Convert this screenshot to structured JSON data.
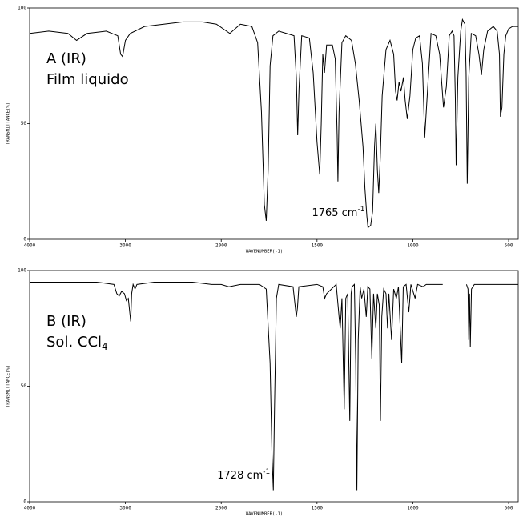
{
  "chart_data": [
    {
      "type": "line",
      "labels": [
        {
          "text": "A (IR)"
        },
        {
          "text": "Film liquido"
        }
      ],
      "annotation": {
        "text": "1765 cm",
        "sup": "-1"
      },
      "x_label": "WAVENUMBER(-1)",
      "y_label": "TRANSMITTANCE(%)",
      "xlim": [
        4000,
        450
      ],
      "ylim": [
        0,
        100
      ],
      "xscale": {
        "break": 2000,
        "expansion": 2
      },
      "xticks": [
        4000,
        3000,
        2000,
        1500,
        1000,
        500
      ],
      "yticks": [
        0,
        50,
        100
      ],
      "color": "#000000",
      "x": [
        4000,
        3800,
        3600,
        3510,
        3400,
        3200,
        3080,
        3050,
        3030,
        3000,
        2950,
        2800,
        2600,
        2400,
        2200,
        2050,
        1955,
        1900,
        1840,
        1810,
        1790,
        1775,
        1765,
        1755,
        1745,
        1730,
        1700,
        1660,
        1620,
        1608,
        1601,
        1594,
        1580,
        1540,
        1520,
        1500,
        1486,
        1478,
        1470,
        1461,
        1450,
        1420,
        1405,
        1395,
        1391,
        1385,
        1370,
        1350,
        1320,
        1300,
        1280,
        1260,
        1250,
        1240,
        1234,
        1220,
        1210,
        1200,
        1193,
        1185,
        1178,
        1170,
        1160,
        1140,
        1119,
        1100,
        1090,
        1082,
        1072,
        1062,
        1049,
        1040,
        1029,
        1015,
        1000,
        985,
        965,
        950,
        938,
        925,
        905,
        880,
        860,
        840,
        825,
        810,
        795,
        785,
        778,
        774,
        765,
        750,
        741,
        728,
        722,
        716,
        708,
        695,
        672,
        655,
        642,
        630,
        610,
        580,
        560,
        548,
        543,
        535,
        525,
        515,
        500,
        480,
        450
      ],
      "values": [
        89,
        90,
        89,
        86,
        89,
        90,
        88,
        80,
        79,
        86,
        89,
        92,
        93,
        94,
        94,
        93,
        89,
        93,
        92,
        85,
        55,
        15,
        8,
        30,
        75,
        88,
        90,
        89,
        88,
        70,
        45,
        65,
        88,
        87,
        72,
        42,
        28,
        50,
        80,
        72,
        84,
        84,
        78,
        45,
        25,
        55,
        85,
        88,
        86,
        76,
        60,
        40,
        22,
        10,
        5,
        6,
        12,
        40,
        50,
        30,
        20,
        35,
        62,
        82,
        86,
        80,
        64,
        60,
        68,
        64,
        70,
        60,
        52,
        62,
        82,
        87,
        88,
        76,
        44,
        62,
        89,
        88,
        80,
        57,
        66,
        88,
        90,
        88,
        60,
        32,
        70,
        90,
        95,
        93,
        72,
        24,
        70,
        89,
        88,
        80,
        71,
        82,
        90,
        92,
        90,
        80,
        53,
        57,
        80,
        88,
        91,
        92,
        92
      ]
    },
    {
      "type": "line",
      "labels": [
        {
          "text": "B (IR)"
        },
        {
          "text": "Sol. CCl",
          "sub": "4"
        }
      ],
      "annotation": {
        "text": "1728 cm",
        "sup": "-1"
      },
      "x_label": "WAVENUMBER(-1)",
      "y_label": "TRANSMITTANCE(%)",
      "xlim": [
        4000,
        450
      ],
      "ylim": [
        0,
        100
      ],
      "xscale": {
        "break": 2000,
        "expansion": 2
      },
      "xticks": [
        4000,
        3000,
        2000,
        1500,
        1000,
        500
      ],
      "yticks": [
        0,
        50,
        100
      ],
      "color": "#000000",
      "x": [
        4000,
        3500,
        3300,
        3120,
        3090,
        3065,
        3040,
        3010,
        2990,
        2970,
        2945,
        2935,
        2920,
        2900,
        2880,
        2700,
        2300,
        2100,
        2000,
        1960,
        1900,
        1800,
        1765,
        1745,
        1735,
        1728,
        1722,
        1712,
        1700,
        1625,
        1608,
        1602,
        1595,
        1500,
        1470,
        1460,
        1450,
        1400,
        1385,
        1379,
        1370,
        1358,
        1350,
        1340,
        1329,
        1322,
        1317,
        1305,
        1298,
        1292,
        1285,
        1275,
        1267,
        1255,
        1243,
        1235,
        1224,
        1214,
        1205,
        1193,
        1185,
        1175,
        1169,
        1162,
        1152,
        1140,
        1132,
        1125,
        1111,
        1100,
        1086,
        1075,
        1058,
        1050,
        1035,
        1021,
        1010,
        988,
        975,
        947,
        930,
        900,
        860,
        844,
        780,
        720,
        712,
        708,
        704,
        700,
        694,
        679,
        600,
        500,
        450
      ],
      "values": [
        95,
        95,
        95,
        94,
        90,
        89,
        91,
        90,
        87,
        88,
        78,
        90,
        94,
        92,
        94,
        95,
        95,
        94,
        94,
        93,
        94,
        94,
        92,
        60,
        20,
        5,
        40,
        88,
        94,
        93,
        80,
        84,
        93,
        94,
        93,
        88,
        90,
        94,
        80,
        75,
        88,
        40,
        88,
        90,
        35,
        90,
        93,
        94,
        60,
        5,
        70,
        93,
        88,
        92,
        80,
        93,
        92,
        62,
        90,
        75,
        90,
        85,
        35,
        80,
        92,
        90,
        75,
        90,
        70,
        92,
        88,
        93,
        60,
        93,
        94,
        82,
        94,
        88,
        94,
        93,
        94,
        94,
        94,
        94,
        null,
        94,
        92,
        70,
        90,
        67,
        92,
        94,
        94,
        94,
        94
      ]
    }
  ]
}
